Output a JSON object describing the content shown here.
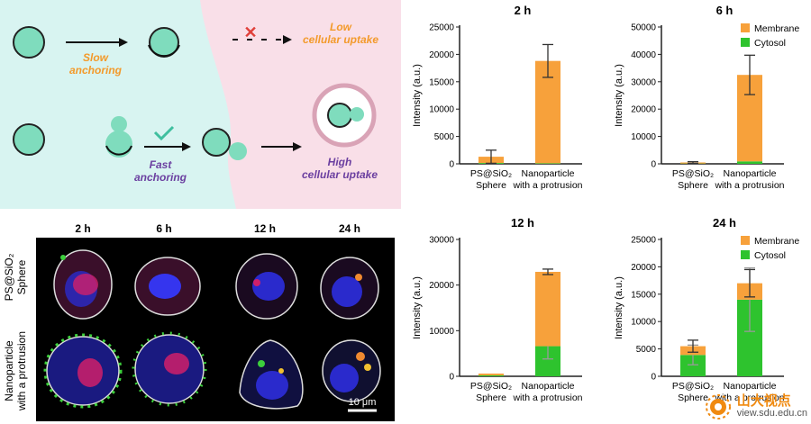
{
  "schematic": {
    "slow_label": [
      "Slow",
      "anchoring"
    ],
    "fast_label": [
      "Fast",
      "anchoring"
    ],
    "low_uptake": [
      "Low",
      "cellular uptake"
    ],
    "high_uptake": [
      "High",
      "cellular uptake"
    ],
    "colors": {
      "left_bg": "#d8f4f1",
      "right_bg": "#f9dfe8",
      "particle": "#7fdcbd",
      "slow_text": "#f39a2b",
      "fast_text": "#6b3fa0",
      "cross": "#e0403a",
      "check": "#3fbf9f"
    }
  },
  "micrograph": {
    "time_labels": [
      "2 h",
      "6 h",
      "12 h",
      "24 h"
    ],
    "row_labels": [
      [
        "PS@SiO₂",
        "Sphere"
      ],
      [
        "Nanoparticle",
        "with a protrusion"
      ]
    ],
    "scale_bar": "10 μm"
  },
  "colors": {
    "membrane": "#f7a13b",
    "cytosol": "#2ec32e",
    "axis": "#222222"
  },
  "chart_data": [
    {
      "type": "bar",
      "stacked": true,
      "title": "2 h",
      "ylabel": "Intensity (a.u.)",
      "ylim": [
        0,
        25000
      ],
      "yticks": [
        "0",
        "5000",
        "10000",
        "15000",
        "20000",
        "25000"
      ],
      "categories": [
        [
          "PS@SiO₂",
          "Sphere"
        ],
        [
          "Nanoparticle",
          "with a protrusion"
        ]
      ],
      "series": [
        {
          "name": "Cytosol",
          "values": [
            150,
            100
          ],
          "errors": [
            0,
            0
          ]
        },
        {
          "name": "Membrane",
          "values": [
            1150,
            18700
          ],
          "errors": [
            1200,
            3000
          ]
        }
      ],
      "legend": false
    },
    {
      "type": "bar",
      "stacked": true,
      "title": "6 h",
      "ylabel": "Intensity (a.u.)",
      "ylim": [
        0,
        50000
      ],
      "yticks": [
        "0",
        "10000",
        "20000",
        "30000",
        "40000",
        "50000"
      ],
      "categories": [
        [
          "PS@SiO₂",
          "Sphere"
        ],
        [
          "Nanoparticle",
          "with a protrusion"
        ]
      ],
      "series": [
        {
          "name": "Cytosol",
          "values": [
            100,
            900
          ],
          "errors": [
            0,
            0
          ]
        },
        {
          "name": "Membrane",
          "values": [
            400,
            31600
          ],
          "errors": [
            300,
            7200
          ]
        }
      ],
      "legend": {
        "items": [
          "Membrane",
          "Cytosol"
        ],
        "placement": "top-right"
      }
    },
    {
      "type": "bar",
      "stacked": true,
      "title": "12 h",
      "ylabel": "Intensity (a.u.)",
      "ylim": [
        0,
        30000
      ],
      "yticks": [
        "0",
        "10000",
        "20000",
        "30000"
      ],
      "categories": [
        [
          "PS@SiO₂",
          "Sphere"
        ],
        [
          "Nanoparticle",
          "with a protrusion"
        ]
      ],
      "series": [
        {
          "name": "Cytosol",
          "values": [
            200,
            6600
          ],
          "errors": [
            0,
            2800
          ]
        },
        {
          "name": "Membrane",
          "values": [
            400,
            16300
          ],
          "errors": [
            0,
            600
          ]
        }
      ],
      "legend": false
    },
    {
      "type": "bar",
      "stacked": true,
      "title": "24 h",
      "ylabel": "Intensity (a.u.)",
      "ylim": [
        0,
        25000
      ],
      "yticks": [
        "0",
        "5000",
        "10000",
        "15000",
        "20000",
        "25000"
      ],
      "categories": [
        [
          "PS@SiO₂",
          "Sphere"
        ],
        [
          "Nanoparticle",
          "with a protrusion"
        ]
      ],
      "series": [
        {
          "name": "Cytosol",
          "values": [
            3900,
            14000
          ],
          "errors": [
            1800,
            5800
          ]
        },
        {
          "name": "Membrane",
          "values": [
            1600,
            3000
          ],
          "errors": [
            1100,
            2500
          ]
        }
      ],
      "legend": {
        "items": [
          "Membrane",
          "Cytosol"
        ],
        "placement": "top-right"
      }
    }
  ],
  "watermark": {
    "brand": "山大视点",
    "url": "view.sdu.edu.cn"
  }
}
